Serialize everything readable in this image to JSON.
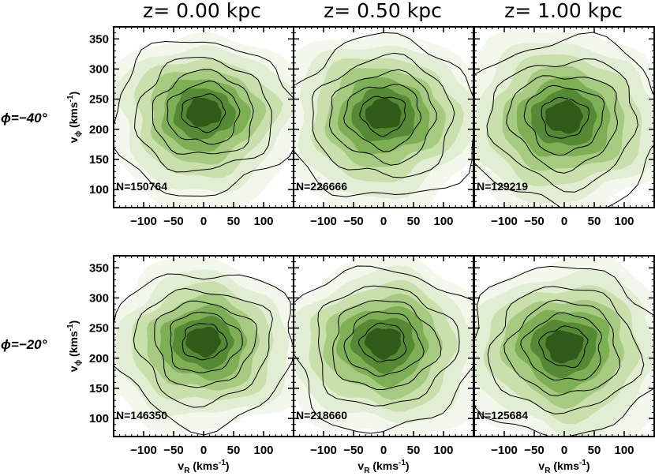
{
  "chart_data": {
    "type": "heatmap",
    "colormap": [
      "#f7fbef",
      "#dcebc9",
      "#b4d38d",
      "#82b052",
      "#54852b",
      "#2c5413"
    ],
    "column_titles": [
      "z=  0.00  kpc",
      "z=  0.50  kpc",
      "z=  1.00  kpc"
    ],
    "row_labels": [
      "ϕ=−40°",
      "ϕ=−20°"
    ],
    "xlabel": "v_R (kms^-1)",
    "ylabel": "v_ϕ (kms^-1)",
    "xlim": [
      -150,
      150
    ],
    "ylim": [
      70,
      370
    ],
    "xticks": [
      -100,
      -50,
      0,
      50,
      100
    ],
    "xtick_labels": [
      "−100",
      "−50",
      "0",
      "50",
      "100"
    ],
    "yticks": [
      100,
      150,
      200,
      250,
      300,
      350
    ],
    "ytick_labels": [
      "100",
      "150",
      "200",
      "250",
      "300",
      "350"
    ],
    "panels": [
      {
        "row": 0,
        "col": 0,
        "count_label": "N=150764",
        "peak": [
          0,
          230
        ],
        "sigma_r": 48,
        "sigma_phi": 38
      },
      {
        "row": 0,
        "col": 1,
        "count_label": "N=226666",
        "peak": [
          0,
          227
        ],
        "sigma_r": 50,
        "sigma_phi": 40
      },
      {
        "row": 0,
        "col": 2,
        "count_label": "N=129219",
        "peak": [
          0,
          222
        ],
        "sigma_r": 52,
        "sigma_phi": 42
      },
      {
        "row": 1,
        "col": 0,
        "count_label": "N=146350",
        "peak": [
          0,
          230
        ],
        "sigma_r": 48,
        "sigma_phi": 38
      },
      {
        "row": 1,
        "col": 1,
        "count_label": "N=218660",
        "peak": [
          0,
          228
        ],
        "sigma_r": 50,
        "sigma_phi": 40
      },
      {
        "row": 1,
        "col": 2,
        "count_label": "N=125684",
        "peak": [
          0,
          222
        ],
        "sigma_r": 52,
        "sigma_phi": 42
      }
    ],
    "grid": false,
    "legend": "none"
  }
}
